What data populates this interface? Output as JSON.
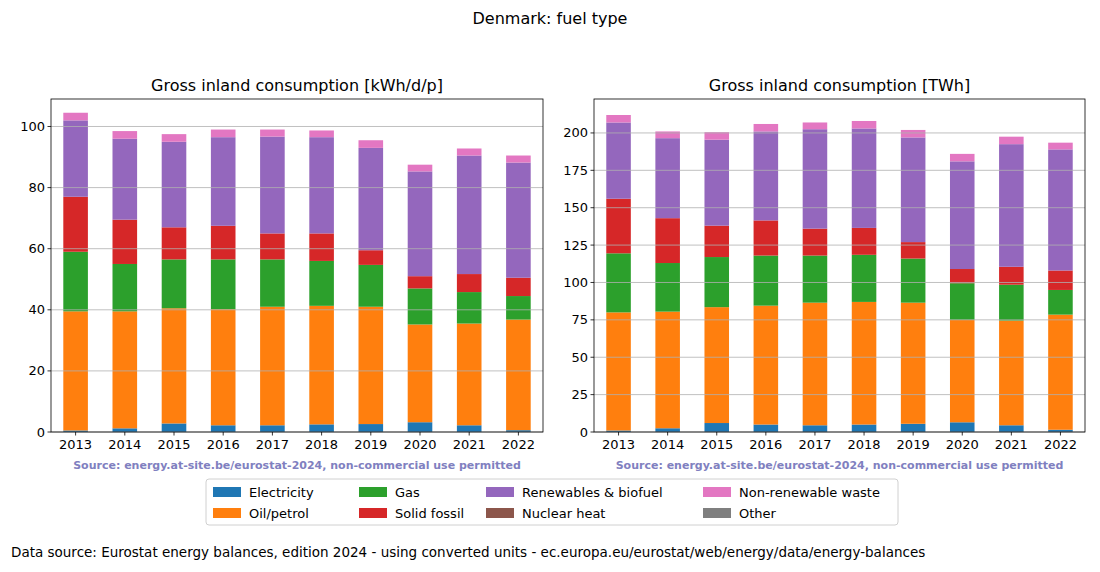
{
  "title": "Denmark: fuel type",
  "footer": "Data source: Eurostat energy balances, edition 2024 - using converted units - ec.europa.eu/eurostat/web/energy/data/energy-balances",
  "chart_data": [
    {
      "type": "bar",
      "title": "Gross inland consumption [kWh/d/p]",
      "stacked": true,
      "grid": true,
      "legend": "bottom",
      "annotations": [
        "Source: energy.at-site.be/eurostat-2024, non-commercial use permitted"
      ],
      "categories": [
        "2013",
        "2014",
        "2015",
        "2016",
        "2017",
        "2018",
        "2019",
        "2020",
        "2021",
        "2022"
      ],
      "ylim": [
        0,
        109
      ],
      "yticks": [
        0,
        20,
        40,
        60,
        80,
        100
      ],
      "series": [
        {
          "name": "Electricity",
          "color": "#1f77b4",
          "values": [
            0.5,
            1.2,
            2.8,
            2.2,
            2.2,
            2.5,
            2.6,
            3.2,
            2.2,
            0.6
          ]
        },
        {
          "name": "Oil/petrol",
          "color": "#ff7f0e",
          "values": [
            39,
            38.3,
            37.7,
            38,
            38.8,
            38.8,
            38.4,
            32,
            33.3,
            36.2
          ]
        },
        {
          "name": "Gas",
          "color": "#2ca02c",
          "values": [
            19.5,
            15.5,
            16,
            16.3,
            15.5,
            14.7,
            13.7,
            11.8,
            10.3,
            7.7
          ]
        },
        {
          "name": "Solid fossil",
          "color": "#d62728",
          "values": [
            18,
            14.5,
            10.5,
            11,
            8.5,
            9,
            4.8,
            4,
            5.9,
            6
          ]
        },
        {
          "name": "Renewables & biofuel",
          "color": "#9467bd",
          "values": [
            25,
            26.5,
            28,
            29,
            31.7,
            31.5,
            33.5,
            34.3,
            38.8,
            37.7
          ]
        },
        {
          "name": "Nuclear heat",
          "color": "#8c564b",
          "values": [
            0,
            0,
            0,
            0,
            0,
            0,
            0,
            0,
            0,
            0
          ]
        },
        {
          "name": "Non-renewable waste",
          "color": "#e377c2",
          "values": [
            2.5,
            2.5,
            2.5,
            2.5,
            2.3,
            2.2,
            2.5,
            2.2,
            2.3,
            2.3
          ]
        },
        {
          "name": "Other",
          "color": "#7f7f7f",
          "values": [
            0,
            0,
            0,
            0,
            0,
            0,
            0,
            0,
            0,
            0
          ]
        }
      ]
    },
    {
      "type": "bar",
      "title": "Gross inland consumption [TWh]",
      "stacked": true,
      "grid": true,
      "legend": "bottom",
      "annotations": [
        "Source: energy.at-site.be/eurostat-2024, non-commercial use permitted"
      ],
      "categories": [
        "2013",
        "2014",
        "2015",
        "2016",
        "2017",
        "2018",
        "2019",
        "2020",
        "2021",
        "2022"
      ],
      "ylim": [
        0,
        222.7
      ],
      "yticks": [
        0,
        25,
        50,
        75,
        100,
        125,
        150,
        175,
        200
      ],
      "series": [
        {
          "name": "Electricity",
          "color": "#1f77b4",
          "values": [
            1,
            2.5,
            6,
            5,
            4.5,
            5,
            5.5,
            6.5,
            4.5,
            1.5
          ]
        },
        {
          "name": "Oil/petrol",
          "color": "#ff7f0e",
          "values": [
            79,
            78,
            77.5,
            79.5,
            82,
            82,
            81,
            68.5,
            70,
            77
          ]
        },
        {
          "name": "Gas",
          "color": "#2ca02c",
          "values": [
            39.5,
            32.5,
            33.5,
            33.5,
            31.5,
            31.5,
            29.5,
            24.5,
            24,
            16.5
          ]
        },
        {
          "name": "Solid fossil",
          "color": "#d62728",
          "values": [
            36.5,
            30,
            21,
            23.5,
            18,
            18,
            11,
            9.5,
            12,
            13
          ]
        },
        {
          "name": "Renewables & biofuel",
          "color": "#9467bd",
          "values": [
            51,
            53.5,
            57.5,
            59.5,
            66.5,
            66.5,
            70,
            72,
            82,
            81
          ]
        },
        {
          "name": "Nuclear heat",
          "color": "#8c564b",
          "values": [
            0,
            0,
            0,
            0,
            0,
            0,
            0,
            0,
            0,
            0
          ]
        },
        {
          "name": "Non-renewable waste",
          "color": "#e377c2",
          "values": [
            5,
            4.5,
            5,
            5,
            4.5,
            5,
            5,
            5,
            5,
            4.5
          ]
        },
        {
          "name": "Other",
          "color": "#7f7f7f",
          "values": [
            0,
            0,
            0,
            0,
            0,
            0,
            0,
            0,
            0,
            0
          ]
        }
      ]
    }
  ]
}
